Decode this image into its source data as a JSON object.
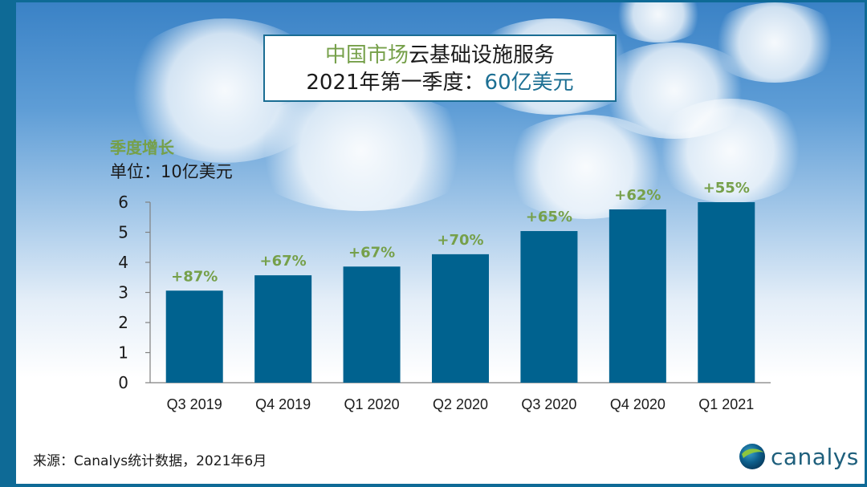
{
  "title": {
    "line1_highlight": "中国市场",
    "line1_rest": "云基础设施服务",
    "line2_prefix": "2021年第一季度：",
    "line2_value": "60亿美元"
  },
  "y_caption": {
    "heading": "季度增长",
    "unit": "单位：10亿美元"
  },
  "source": "来源：Canalys统计数据，2021年6月",
  "logo": {
    "text": "canalys",
    "icon": "globe-icon"
  },
  "colors": {
    "bar": "#00628f",
    "growth_label": "#76a04a",
    "title_value": "#1c6f93",
    "frame": "#0e6a96"
  },
  "chart_data": {
    "type": "bar",
    "title": "中国市场云基础设施服务 2021年第一季度：60亿美元",
    "xlabel": "",
    "ylabel": "单位：10亿美元",
    "categories": [
      "Q3 2019",
      "Q4 2019",
      "Q1 2020",
      "Q2 2020",
      "Q3 2020",
      "Q4 2020",
      "Q1 2021"
    ],
    "values": [
      3.06,
      3.57,
      3.86,
      4.27,
      5.04,
      5.76,
      6.0
    ],
    "data_labels": [
      "+87%",
      "+67%",
      "+67%",
      "+70%",
      "+65%",
      "+62%",
      "+55%"
    ],
    "data_label_meaning": "季度增长 (year-over-year growth)",
    "ylim": [
      0,
      6
    ],
    "yticks": [
      0,
      1,
      2,
      3,
      4,
      5,
      6
    ],
    "grid": false,
    "legend": "none"
  }
}
